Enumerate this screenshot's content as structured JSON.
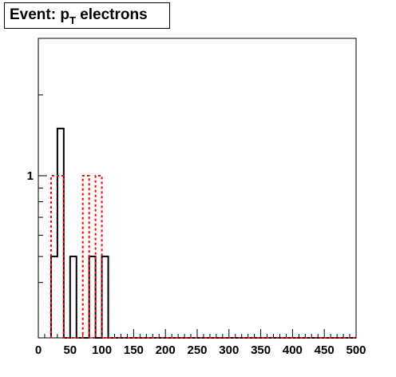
{
  "title": {
    "main": "Event: p",
    "subscript": "T",
    "suffix": " electrons"
  },
  "chart_data": {
    "type": "histogram",
    "title": "Event: p_T electrons",
    "xlabel": "",
    "ylabel": "",
    "xlim": [
      0,
      500
    ],
    "ylog": true,
    "grid": false,
    "bin_width": 10,
    "x_ticks": [
      "0",
      "50",
      "100",
      "150",
      "200",
      "250",
      "300",
      "350",
      "400",
      "450",
      "500"
    ],
    "y_tick_labels": [
      {
        "value": 1,
        "label": "1"
      }
    ],
    "series": [
      {
        "color": "#000000",
        "line_style": "solid",
        "bins": [
          {
            "x0": 20,
            "x1": 30,
            "value": 0.5
          },
          {
            "x0": 30,
            "x1": 40,
            "value": 1.5
          },
          {
            "x0": 40,
            "x1": 50,
            "value": 0.0
          },
          {
            "x0": 50,
            "x1": 60,
            "value": 0.5
          },
          {
            "x0": 60,
            "x1": 70,
            "value": 0.0
          },
          {
            "x0": 70,
            "x1": 80,
            "value": 0.0
          },
          {
            "x0": 80,
            "x1": 90,
            "value": 0.5
          },
          {
            "x0": 90,
            "x1": 100,
            "value": 0.0
          },
          {
            "x0": 100,
            "x1": 110,
            "value": 0.5
          }
        ]
      },
      {
        "color": "#ff0000",
        "line_style": "dotted",
        "bins": [
          {
            "x0": 20,
            "x1": 30,
            "value": 1.0
          },
          {
            "x0": 30,
            "x1": 40,
            "value": 1.0
          },
          {
            "x0": 40,
            "x1": 50,
            "value": 0.0
          },
          {
            "x0": 50,
            "x1": 60,
            "value": 0.0
          },
          {
            "x0": 60,
            "x1": 70,
            "value": 0.0
          },
          {
            "x0": 70,
            "x1": 80,
            "value": 1.0
          },
          {
            "x0": 80,
            "x1": 90,
            "value": 0.0
          },
          {
            "x0": 90,
            "x1": 100,
            "value": 1.0
          }
        ]
      }
    ]
  }
}
